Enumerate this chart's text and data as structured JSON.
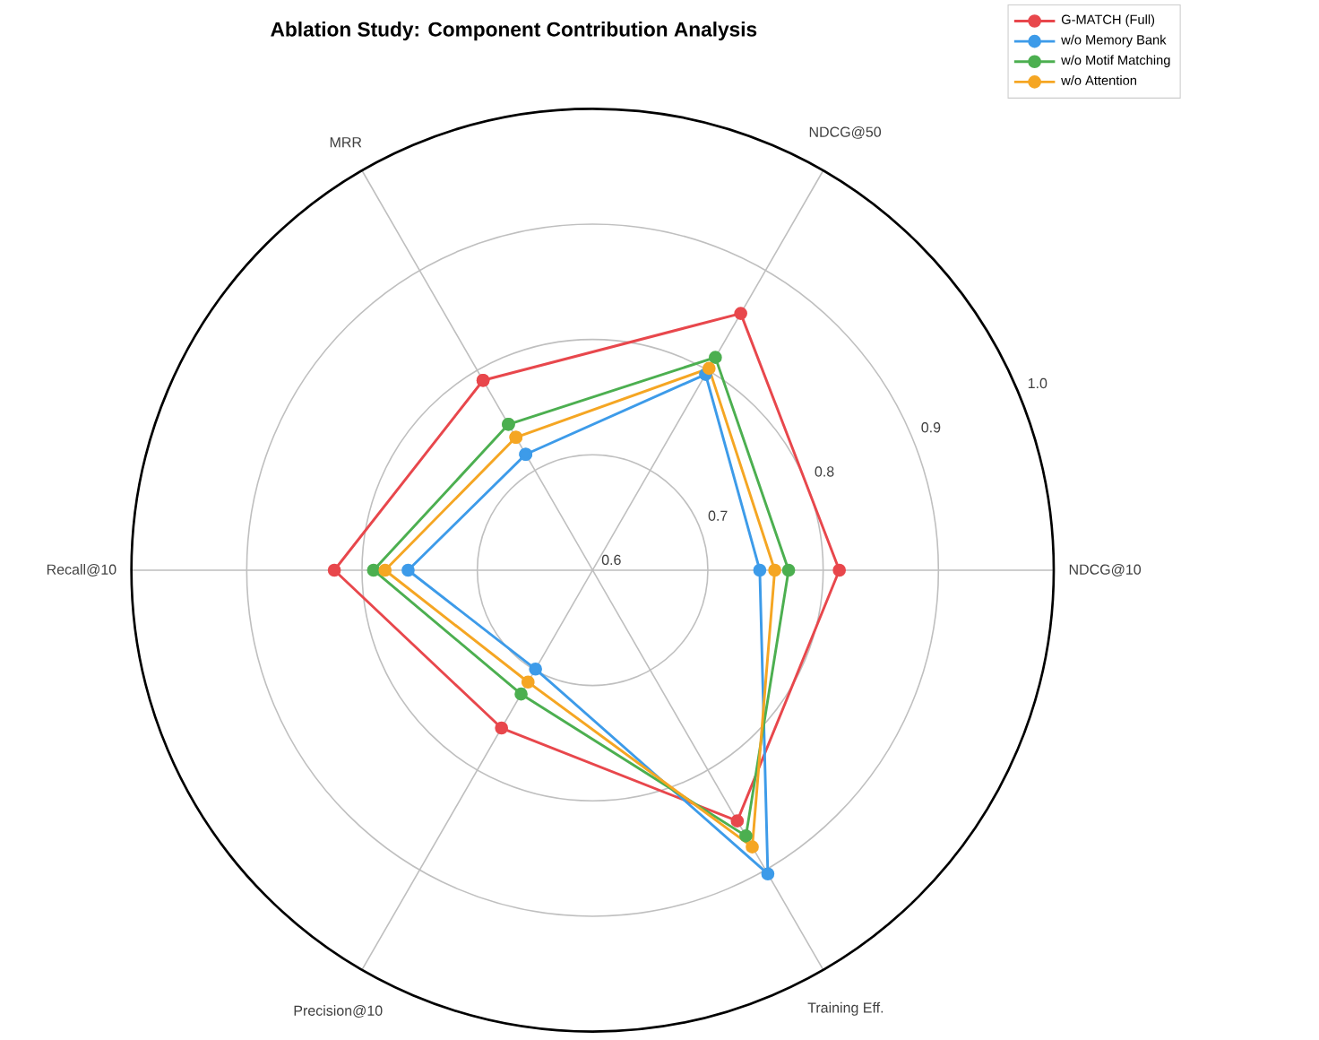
{
  "chart_data": {
    "type": "radar",
    "title": "Ablation Study: Component Contribution Analysis",
    "categories": [
      "MRR",
      "NDCG@50",
      "NDCG@10",
      "Training Eff.",
      "Precision@10",
      "Recall@10"
    ],
    "series": [
      {
        "name": "G-MATCH (Full)",
        "color": "#e8474c",
        "values": [
          0.79,
          0.857,
          0.814,
          0.851,
          0.758,
          0.824
        ]
      },
      {
        "name": "w/o Memory Bank",
        "color": "#3d9be9",
        "values": [
          0.716,
          0.796,
          0.745,
          0.904,
          0.699,
          0.76
        ]
      },
      {
        "name": "w/o Motif Matching",
        "color": "#4caf50",
        "values": [
          0.746,
          0.813,
          0.77,
          0.866,
          0.724,
          0.79
        ]
      },
      {
        "name": "w/o Attention",
        "color": "#f5a623",
        "values": [
          0.733,
          0.802,
          0.758,
          0.877,
          0.712,
          0.78
        ]
      }
    ],
    "ylim": [
      0.6,
      1.0
    ],
    "yticks": [
      0.6,
      0.7,
      0.8,
      0.9,
      {
        "value": 1.0,
        "label": "1.0"
      }
    ],
    "grid": true,
    "legend": "top right",
    "marker": "circle"
  }
}
